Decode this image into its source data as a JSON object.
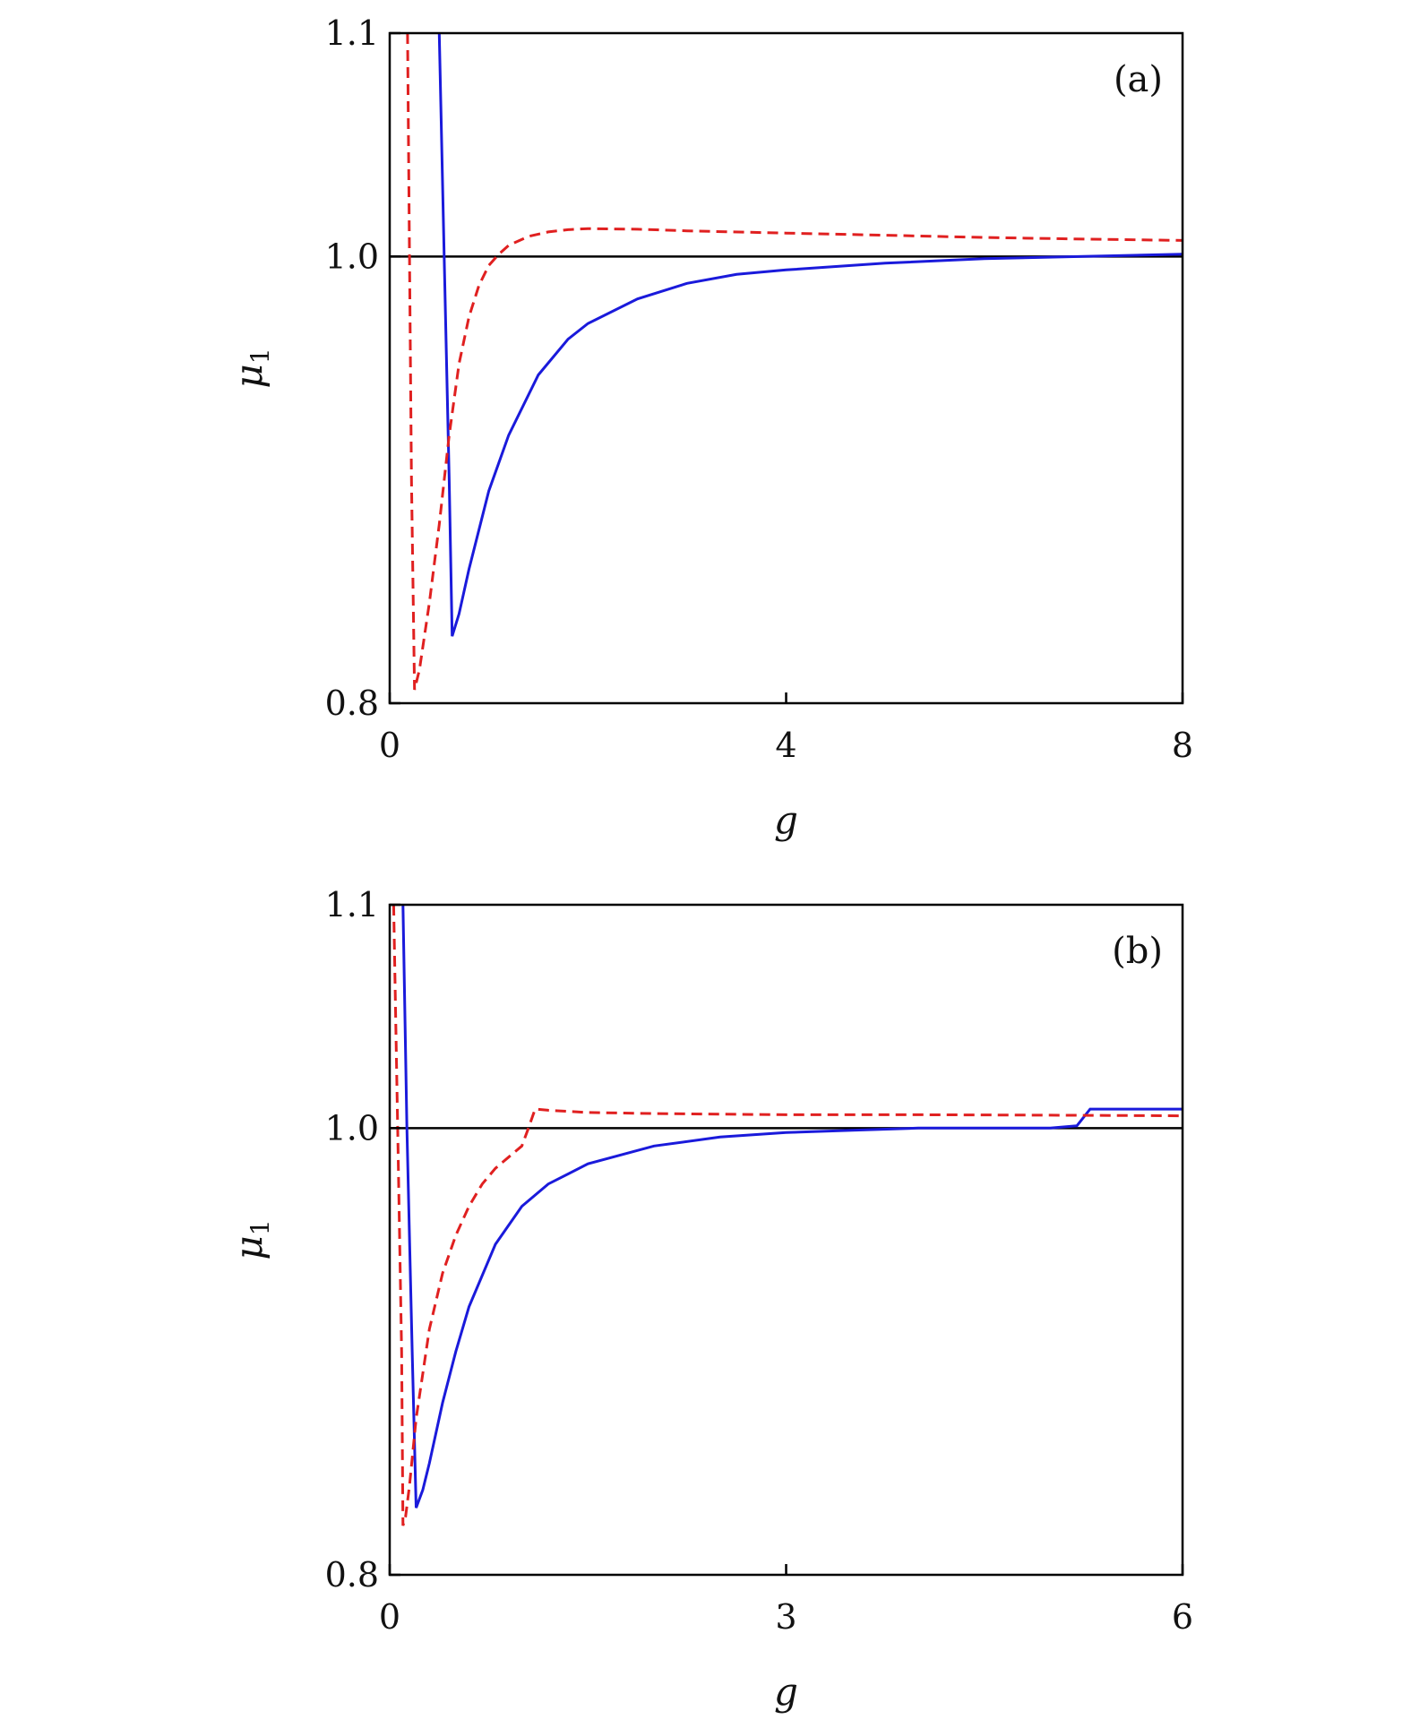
{
  "colors": {
    "solid_series": "#1a1adb",
    "dashed_series": "#e02020",
    "axes": "#000000"
  },
  "chart_data": [
    {
      "type": "line",
      "panel_label": "(a)",
      "xlabel": "g",
      "ylabel": "μ",
      "ylabel_subscript": "1",
      "xlim": [
        0,
        8
      ],
      "ylim": [
        0.8,
        1.1
      ],
      "xticks": [
        0,
        4,
        8
      ],
      "xtick_labels": [
        "0",
        "4",
        "8"
      ],
      "yticks": [
        0.8,
        1.0,
        1.1
      ],
      "ytick_labels": [
        "0.8",
        "1.0",
        "1.1"
      ],
      "reference_line_y": 1.0,
      "grid": false,
      "series": [
        {
          "style": "solid",
          "x": [
            0.5,
            0.55,
            0.6,
            0.63,
            0.7,
            0.8,
            1.0,
            1.2,
            1.5,
            1.8,
            2.0,
            2.5,
            3.0,
            3.5,
            4.0,
            5.0,
            6.0,
            7.0,
            8.0
          ],
          "y": [
            1.1,
            1.0,
            0.9,
            0.83,
            0.84,
            0.86,
            0.895,
            0.92,
            0.947,
            0.963,
            0.97,
            0.981,
            0.988,
            0.992,
            0.994,
            0.997,
            0.999,
            1.0,
            1.001
          ]
        },
        {
          "style": "dashed",
          "x": [
            0.18,
            0.2,
            0.22,
            0.25,
            0.3,
            0.4,
            0.5,
            0.6,
            0.7,
            0.8,
            0.9,
            1.0,
            1.1,
            1.2,
            1.4,
            1.6,
            1.8,
            2.0,
            2.5,
            3.0,
            4.0,
            5.0,
            6.0,
            7.0,
            8.0
          ],
          "y": [
            1.1,
            1.0,
            0.9,
            0.806,
            0.815,
            0.845,
            0.88,
            0.92,
            0.952,
            0.973,
            0.987,
            0.996,
            1.001,
            1.005,
            1.009,
            1.011,
            1.012,
            1.0125,
            1.0122,
            1.0115,
            1.0105,
            1.0095,
            1.0085,
            1.0078,
            1.0072
          ]
        }
      ]
    },
    {
      "type": "line",
      "panel_label": "(b)",
      "xlabel": "g",
      "ylabel": "μ",
      "ylabel_subscript": "1",
      "xlim": [
        0,
        6
      ],
      "ylim": [
        0.8,
        1.1
      ],
      "xticks": [
        0,
        3,
        6
      ],
      "xtick_labels": [
        "0",
        "3",
        "6"
      ],
      "yticks": [
        0.8,
        1.0,
        1.1
      ],
      "ytick_labels": [
        "0.8",
        "1.0",
        "1.1"
      ],
      "reference_line_y": 1.0,
      "grid": false,
      "series": [
        {
          "style": "solid",
          "x": [
            0.1,
            0.13,
            0.17,
            0.2,
            0.25,
            0.3,
            0.4,
            0.5,
            0.6,
            0.8,
            1.0,
            1.2,
            1.5,
            2.0,
            2.5,
            3.0,
            3.5,
            4.0,
            4.5,
            5.0,
            5.2,
            5.3,
            5.5,
            6.0
          ],
          "y": [
            1.1,
            1.0,
            0.9,
            0.83,
            0.838,
            0.85,
            0.877,
            0.9,
            0.92,
            0.948,
            0.965,
            0.975,
            0.984,
            0.992,
            0.996,
            0.998,
            0.999,
            1.0,
            1.0,
            1.0,
            1.001,
            1.0085,
            1.0085,
            1.0085
          ]
        },
        {
          "style": "dashed",
          "x": [
            0.03,
            0.06,
            0.09,
            0.1,
            0.12,
            0.15,
            0.2,
            0.3,
            0.4,
            0.5,
            0.6,
            0.7,
            0.8,
            0.9,
            1.0,
            1.05,
            1.1,
            1.2,
            1.5,
            2.0,
            3.0,
            4.0,
            5.0,
            6.0
          ],
          "y": [
            1.1,
            1.0,
            0.9,
            0.822,
            0.826,
            0.84,
            0.87,
            0.91,
            0.935,
            0.952,
            0.965,
            0.975,
            0.982,
            0.987,
            0.992,
            1.0,
            1.0085,
            1.008,
            1.007,
            1.0065,
            1.006,
            1.006,
            1.0058,
            1.0055
          ]
        }
      ]
    }
  ]
}
